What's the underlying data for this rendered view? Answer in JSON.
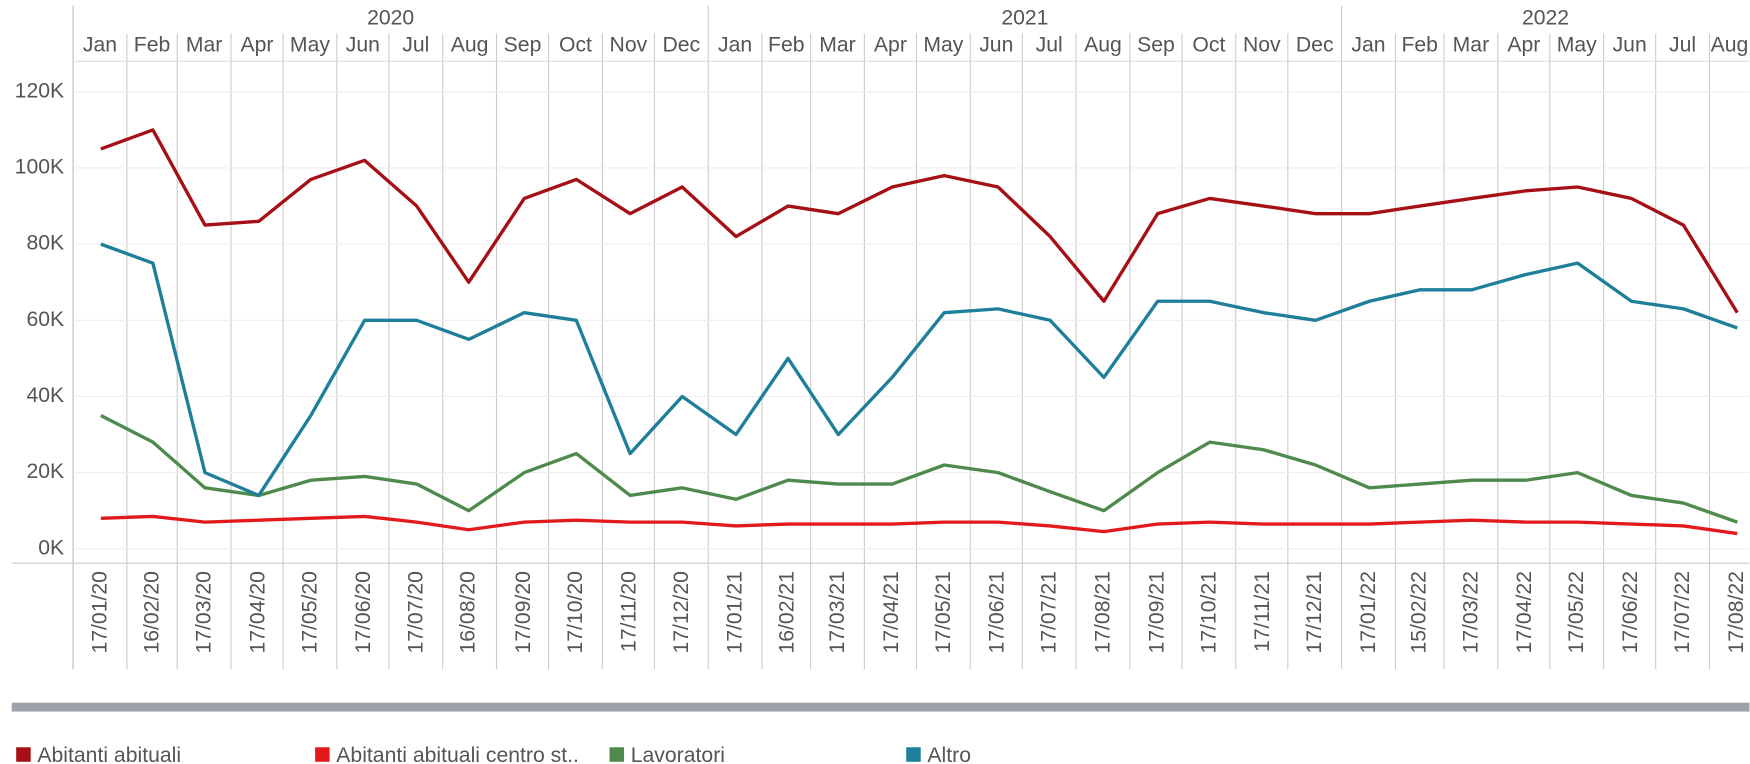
{
  "chart_data": {
    "type": "line",
    "years": [
      2020,
      2021,
      2022
    ],
    "months": [
      "Jan",
      "Feb",
      "Mar",
      "Apr",
      "May",
      "Jun",
      "Jul",
      "Aug",
      "Sep",
      "Oct",
      "Nov",
      "Dec",
      "Jan",
      "Feb",
      "Mar",
      "Apr",
      "May",
      "Jun",
      "Jul",
      "Aug",
      "Sep",
      "Oct",
      "Nov",
      "Dec",
      "Jan",
      "Feb",
      "Mar",
      "Apr",
      "May",
      "Jun",
      "Jul",
      "Aug"
    ],
    "x": [
      "17/01/20",
      "16/02/20",
      "17/03/20",
      "17/04/20",
      "17/05/20",
      "17/06/20",
      "17/07/20",
      "16/08/20",
      "17/09/20",
      "17/10/20",
      "17/11/20",
      "17/12/20",
      "17/01/21",
      "16/02/21",
      "17/03/21",
      "17/04/21",
      "17/05/21",
      "17/06/21",
      "17/07/21",
      "17/08/21",
      "17/09/21",
      "17/10/21",
      "17/11/21",
      "17/12/21",
      "17/01/22",
      "15/02/22",
      "17/03/22",
      "17/04/22",
      "17/05/22",
      "17/06/22",
      "17/07/22",
      "17/08/22"
    ],
    "xlim": [
      "01/01/20",
      "24/08/22"
    ],
    "ylim": [
      -3800,
      128000
    ],
    "yticks": [
      {
        "value": 0,
        "label": "0K"
      },
      {
        "value": 20000,
        "label": "20K"
      },
      {
        "value": 40000,
        "label": "40K"
      },
      {
        "value": 60000,
        "label": "60K"
      },
      {
        "value": 80000,
        "label": "80K"
      },
      {
        "value": 100000,
        "label": "100K"
      },
      {
        "value": 120000,
        "label": "120K"
      }
    ],
    "grid": true,
    "legend": "bottom",
    "series": [
      {
        "name": "Abitanti abituali",
        "color": "#a50f15",
        "values": [
          105000,
          110000,
          85000,
          86000,
          97000,
          102000,
          90000,
          70000,
          92000,
          97000,
          88000,
          95000,
          82000,
          90000,
          88000,
          95000,
          98000,
          95000,
          82000,
          65000,
          88000,
          92000,
          90000,
          88000,
          88000,
          90000,
          92000,
          94000,
          95000,
          92000,
          85000,
          62000
        ]
      },
      {
        "name": "Abitanti abituali centro st..",
        "color": "#e31a1c",
        "values": [
          8000,
          8500,
          7000,
          7500,
          8000,
          8500,
          7000,
          5000,
          7000,
          7500,
          7000,
          7000,
          6000,
          6500,
          6500,
          6500,
          7000,
          7000,
          6000,
          4500,
          6500,
          7000,
          6500,
          6500,
          6500,
          7000,
          7500,
          7000,
          7000,
          6500,
          6000,
          4000
        ]
      },
      {
        "name": "Lavoratori",
        "color": "#4e8a4b",
        "values": [
          35000,
          28000,
          16000,
          14000,
          18000,
          19000,
          17000,
          10000,
          20000,
          25000,
          14000,
          16000,
          13000,
          18000,
          17000,
          17000,
          22000,
          20000,
          15000,
          10000,
          20000,
          28000,
          26000,
          22000,
          16000,
          17000,
          18000,
          18000,
          20000,
          14000,
          12000,
          7000
        ]
      },
      {
        "name": "Altro",
        "color": "#1f7f9a",
        "values": [
          80000,
          75000,
          20000,
          14000,
          35000,
          60000,
          60000,
          55000,
          62000,
          60000,
          25000,
          40000,
          30000,
          50000,
          30000,
          45000,
          62000,
          63000,
          60000,
          45000,
          65000,
          65000,
          62000,
          60000,
          65000,
          68000,
          68000,
          72000,
          75000,
          65000,
          63000,
          58000
        ]
      }
    ]
  }
}
